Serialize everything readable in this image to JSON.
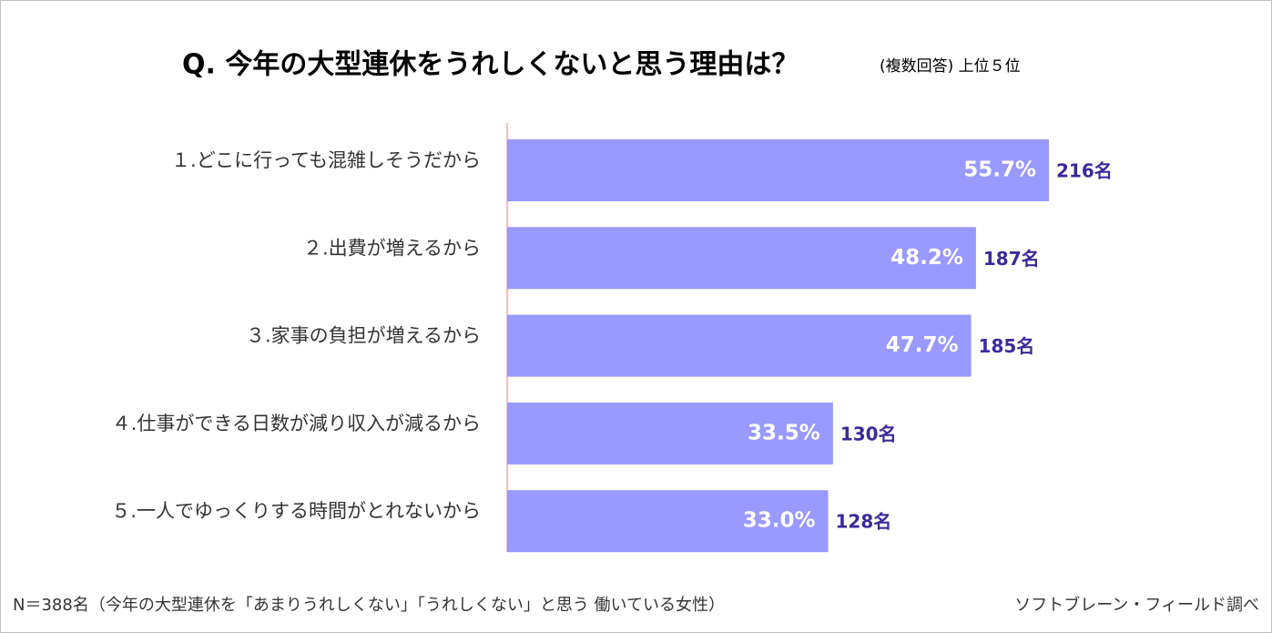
{
  "chart_data": {
    "type": "bar",
    "orientation": "horizontal",
    "title": "Q.  今年の大型連休をうれしくないと思う理由は？",
    "subtitle": "(複数回答)  上位５位",
    "categories": [
      "１.どこに行っても混雑しそうだから",
      "２.出費が増えるから",
      "３.家事の負担が増えるから",
      "４.仕事ができる日数が減り収入が減るから",
      "５.一人でゆっくりする時間がとれないから"
    ],
    "values": [
      55.7,
      48.2,
      47.7,
      33.5,
      33.0
    ],
    "value_labels": [
      "55.7%",
      "48.2%",
      "47.7%",
      "33.5%",
      "33.0%"
    ],
    "counts": [
      216,
      187,
      185,
      130,
      128
    ],
    "count_labels": [
      "216名",
      "187名",
      "185名",
      "130名",
      "128名"
    ],
    "color": "#9999ff",
    "note": "N＝388名（今年の大型連休を「あまりうれしくない」「うれしくない」と思う 働いている女性）",
    "source": "ソフトブレーン・フィールド調べ"
  }
}
